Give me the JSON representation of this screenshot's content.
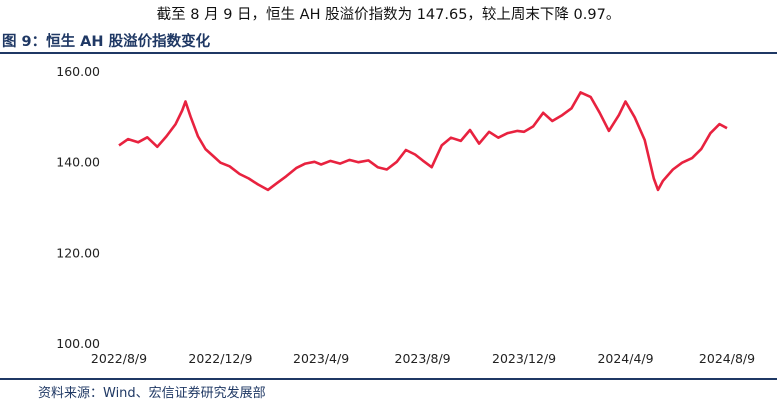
{
  "intro_text": "截至 8 月 9 日，恒生 AH 股溢价指数为 147.65，较上周末下降 0.97。",
  "figure_title": "图 9：恒生 AH 股溢价指数变化",
  "source_text": "资料来源：Wind、宏信证券研究发展部",
  "colors": {
    "series": "#e8223f",
    "title": "#1f3864",
    "rule": "#1f3864"
  },
  "chart_data": {
    "type": "line",
    "title": "",
    "xlabel": "",
    "ylabel": "",
    "ylim": [
      100,
      160
    ],
    "yticks": [
      "100.00",
      "120.00",
      "140.00",
      "160.00"
    ],
    "xticks": [
      "2022/8/9",
      "2022/12/9",
      "2023/4/9",
      "2023/8/9",
      "2023/12/9",
      "2024/4/9",
      "2024/8/9"
    ],
    "grid": false,
    "legend": "none",
    "series": [
      {
        "name": "",
        "x": [
          "2022/8/9",
          "2022/8/20",
          "2022/9/1",
          "2022/9/12",
          "2022/9/24",
          "2022/10/5",
          "2022/10/16",
          "2022/10/24",
          "2022/10/28",
          "2022/11/3",
          "2022/11/12",
          "2022/11/21",
          "2022/11/30",
          "2022/12/9",
          "2022/12/20",
          "2023/1/1",
          "2023/1/12",
          "2023/1/23",
          "2023/2/4",
          "2023/2/15",
          "2023/2/26",
          "2023/3/10",
          "2023/3/21",
          "2023/4/1",
          "2023/4/9",
          "2023/4/20",
          "2023/5/2",
          "2023/5/13",
          "2023/5/24",
          "2023/6/5",
          "2023/6/16",
          "2023/6/27",
          "2023/7/9",
          "2023/7/20",
          "2023/7/31",
          "2023/8/9",
          "2023/8/20",
          "2023/9/1",
          "2023/9/12",
          "2023/9/24",
          "2023/10/5",
          "2023/10/16",
          "2023/10/28",
          "2023/11/8",
          "2023/11/19",
          "2023/12/1",
          "2023/12/9",
          "2023/12/20",
          "2024/1/1",
          "2024/1/12",
          "2024/1/24",
          "2024/2/4",
          "2024/2/15",
          "2024/2/27",
          "2024/3/9",
          "2024/3/20",
          "2024/4/1",
          "2024/4/9",
          "2024/4/20",
          "2024/5/2",
          "2024/5/13",
          "2024/5/18",
          "2024/5/24",
          "2024/6/5",
          "2024/6/16",
          "2024/6/28",
          "2024/7/9",
          "2024/7/20",
          "2024/7/31",
          "2024/8/9"
        ],
        "values": [
          143.8,
          145.2,
          144.5,
          145.6,
          143.5,
          145.8,
          148.5,
          151.5,
          153.5,
          150.2,
          145.8,
          143.0,
          141.5,
          140.0,
          139.2,
          137.5,
          136.5,
          135.2,
          134.0,
          135.5,
          137.0,
          138.8,
          139.8,
          140.2,
          139.6,
          140.4,
          139.8,
          140.6,
          140.1,
          140.5,
          139.0,
          138.5,
          140.2,
          142.8,
          141.8,
          140.5,
          139.0,
          143.8,
          145.5,
          144.8,
          147.2,
          144.2,
          146.8,
          145.5,
          146.5,
          147.0,
          146.8,
          148.0,
          151.0,
          149.2,
          150.5,
          152.0,
          155.5,
          154.5,
          151.0,
          147.0,
          150.5,
          153.5,
          150.0,
          145.0,
          136.5,
          134.0,
          136.0,
          138.5,
          140.0,
          141.0,
          143.0,
          146.5,
          148.5,
          147.6
        ]
      }
    ]
  }
}
